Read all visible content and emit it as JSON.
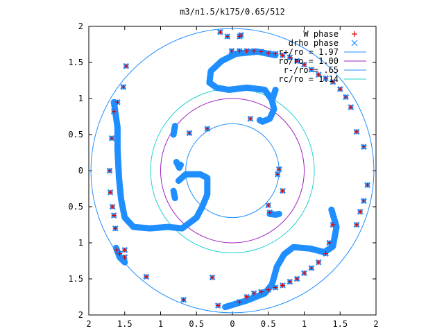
{
  "chart_data": {
    "type": "scatter",
    "title": "m3/n1.5/k175/0.65/512",
    "xlim": [
      2,
      -2
    ],
    "ylim": [
      -2,
      2
    ],
    "x_ticks": [
      {
        "value": 2,
        "label": "2"
      },
      {
        "value": 1.5,
        "label": "1.5"
      },
      {
        "value": 1,
        "label": "1"
      },
      {
        "value": 0.5,
        "label": "0.5"
      },
      {
        "value": 0,
        "label": "0"
      },
      {
        "value": -0.5,
        "label": "0.5"
      },
      {
        "value": -1,
        "label": "1"
      },
      {
        "value": -1.5,
        "label": "1.5"
      },
      {
        "value": -2,
        "label": "2"
      }
    ],
    "y_ticks": [
      {
        "value": 2,
        "label": "2"
      },
      {
        "value": 1.5,
        "label": "1.5"
      },
      {
        "value": 1,
        "label": "1"
      },
      {
        "value": 0.5,
        "label": "0.5"
      },
      {
        "value": 0,
        "label": "0"
      },
      {
        "value": -0.5,
        "label": "0.5"
      },
      {
        "value": -1,
        "label": "1"
      },
      {
        "value": -1.5,
        "label": "1.5"
      },
      {
        "value": -2,
        "label": "2"
      }
    ],
    "legend_position": "top-right",
    "grid": false,
    "circles": [
      {
        "name": "r+/ro = 1.97",
        "radius": 1.97,
        "color": "#1f8fff"
      },
      {
        "name": "ro/ro = 1.00",
        "radius": 1.0,
        "color": "#a020c0"
      },
      {
        "name": "r-/ro = .65",
        "radius": 0.65,
        "color": "#1f8fff"
      },
      {
        "name": "rc/ro = 1.14",
        "radius": 1.14,
        "color": "#20d0d0"
      }
    ],
    "series": [
      {
        "name": "W phase",
        "marker": "+",
        "color": "#dd0000",
        "points": [
          [
            0.17,
            1.92
          ],
          [
            0.07,
            1.86
          ],
          [
            -0.1,
            1.86
          ],
          [
            -0.12,
            1.88
          ],
          [
            0.01,
            1.66
          ],
          [
            -0.1,
            1.66
          ],
          [
            -0.2,
            1.66
          ],
          [
            -0.3,
            1.66
          ],
          [
            -0.4,
            1.65
          ],
          [
            -0.5,
            1.63
          ],
          [
            -0.6,
            1.62
          ],
          [
            -0.7,
            1.6
          ],
          [
            -0.8,
            1.57
          ],
          [
            -0.9,
            1.52
          ],
          [
            -1.0,
            1.47
          ],
          [
            -1.1,
            1.4
          ],
          [
            -1.2,
            1.33
          ],
          [
            -1.3,
            1.28
          ],
          [
            -1.4,
            1.23
          ],
          [
            -1.5,
            1.13
          ],
          [
            -1.58,
            1.02
          ],
          [
            -1.65,
            0.88
          ],
          [
            -1.73,
            0.54
          ],
          [
            -1.83,
            0.33
          ],
          [
            -1.88,
            -0.2
          ],
          [
            -1.83,
            -0.42
          ],
          [
            -1.78,
            -0.57
          ],
          [
            -1.73,
            -0.75
          ],
          [
            -0.7,
            -0.28
          ],
          [
            -0.52,
            -0.58
          ],
          [
            -1.4,
            -0.75
          ],
          [
            -1.35,
            -1.0
          ],
          [
            -1.3,
            -1.15
          ],
          [
            -1.2,
            -1.27
          ],
          [
            -1.1,
            -1.35
          ],
          [
            -1.0,
            -1.42
          ],
          [
            -0.9,
            -1.5
          ],
          [
            -0.8,
            -1.54
          ],
          [
            -0.7,
            -1.59
          ],
          [
            -0.6,
            -1.62
          ],
          [
            -0.5,
            -1.65
          ],
          [
            -0.4,
            -1.68
          ],
          [
            -0.3,
            -1.7
          ],
          [
            -0.2,
            -1.75
          ],
          [
            -0.1,
            -1.82
          ],
          [
            0.2,
            -1.87
          ],
          [
            -0.63,
            -0.05
          ],
          [
            -0.65,
            0.02
          ],
          [
            -0.5,
            -0.48
          ],
          [
            -0.25,
            0.72
          ],
          [
            0.35,
            0.58
          ],
          [
            1.6,
            0.95
          ],
          [
            1.65,
            0.82
          ],
          [
            1.68,
            0.45
          ],
          [
            1.71,
            0.0
          ],
          [
            1.7,
            -0.3
          ],
          [
            1.67,
            -0.5
          ],
          [
            1.65,
            -0.62
          ],
          [
            1.63,
            -0.8
          ],
          [
            1.61,
            -1.1
          ],
          [
            1.57,
            -1.15
          ],
          [
            1.5,
            -1.2
          ],
          [
            1.2,
            -1.47
          ],
          [
            1.48,
            1.45
          ],
          [
            1.52,
            1.16
          ],
          [
            0.68,
            -1.79
          ],
          [
            0.6,
            0.52
          ],
          [
            0.28,
            -1.48
          ],
          [
            1.5,
            -1.1
          ]
        ]
      },
      {
        "name": "drho phase",
        "marker": "x",
        "color": "#1f8fff",
        "points": [
          [
            0.17,
            1.92
          ],
          [
            0.07,
            1.86
          ],
          [
            -0.1,
            1.86
          ],
          [
            -0.12,
            1.88
          ],
          [
            0.01,
            1.66
          ],
          [
            -0.1,
            1.66
          ],
          [
            -0.2,
            1.66
          ],
          [
            -0.3,
            1.66
          ],
          [
            -0.4,
            1.65
          ],
          [
            -0.5,
            1.63
          ],
          [
            -0.6,
            1.62
          ],
          [
            -0.7,
            1.6
          ],
          [
            -0.8,
            1.57
          ],
          [
            -0.9,
            1.52
          ],
          [
            -1.0,
            1.47
          ],
          [
            -1.1,
            1.4
          ],
          [
            -1.2,
            1.33
          ],
          [
            -1.3,
            1.28
          ],
          [
            -1.4,
            1.23
          ],
          [
            -1.5,
            1.13
          ],
          [
            -1.58,
            1.02
          ],
          [
            -1.65,
            0.88
          ],
          [
            -1.73,
            0.54
          ],
          [
            -1.83,
            0.33
          ],
          [
            -1.88,
            -0.2
          ],
          [
            -1.83,
            -0.42
          ],
          [
            -1.78,
            -0.57
          ],
          [
            -1.73,
            -0.75
          ],
          [
            -0.7,
            -0.28
          ],
          [
            -0.52,
            -0.58
          ],
          [
            -1.4,
            -0.75
          ],
          [
            -1.35,
            -1.0
          ],
          [
            -1.3,
            -1.15
          ],
          [
            -1.2,
            -1.27
          ],
          [
            -1.1,
            -1.35
          ],
          [
            -1.0,
            -1.42
          ],
          [
            -0.9,
            -1.5
          ],
          [
            -0.8,
            -1.54
          ],
          [
            -0.7,
            -1.59
          ],
          [
            -0.6,
            -1.62
          ],
          [
            -0.5,
            -1.65
          ],
          [
            -0.4,
            -1.68
          ],
          [
            -0.3,
            -1.7
          ],
          [
            -0.2,
            -1.75
          ],
          [
            -0.1,
            -1.82
          ],
          [
            0.2,
            -1.87
          ],
          [
            -0.63,
            -0.05
          ],
          [
            -0.65,
            0.02
          ],
          [
            -0.5,
            -0.48
          ],
          [
            -0.25,
            0.72
          ],
          [
            0.35,
            0.58
          ],
          [
            1.6,
            0.95
          ],
          [
            1.65,
            0.82
          ],
          [
            1.68,
            0.45
          ],
          [
            1.71,
            0.0
          ],
          [
            1.7,
            -0.3
          ],
          [
            1.67,
            -0.5
          ],
          [
            1.65,
            -0.62
          ],
          [
            1.63,
            -0.8
          ],
          [
            1.61,
            -1.1
          ],
          [
            1.57,
            -1.15
          ],
          [
            1.5,
            -1.2
          ],
          [
            1.2,
            -1.47
          ],
          [
            1.48,
            1.45
          ],
          [
            1.52,
            1.16
          ],
          [
            0.68,
            -1.79
          ],
          [
            0.6,
            0.52
          ],
          [
            0.28,
            -1.48
          ],
          [
            1.5,
            -1.1
          ]
        ],
        "curves": [
          [
            [
              -0.6,
              1.6
            ],
            [
              -0.35,
              1.65
            ],
            [
              -0.05,
              1.62
            ],
            [
              0.15,
              1.52
            ],
            [
              0.3,
              1.38
            ],
            [
              0.32,
              1.22
            ],
            [
              0.22,
              1.15
            ],
            [
              0.05,
              1.12
            ],
            [
              -0.2,
              1.15
            ],
            [
              -0.45,
              1.12
            ],
            [
              -0.55,
              0.98
            ],
            [
              -0.58,
              0.85
            ],
            [
              -0.52,
              0.72
            ],
            [
              -0.42,
              0.68
            ],
            [
              -0.38,
              0.7
            ]
          ],
          [
            [
              -1.38,
              -0.54
            ],
            [
              -1.45,
              -0.78
            ],
            [
              -1.4,
              -1.05
            ],
            [
              -1.28,
              -1.13
            ],
            [
              -1.08,
              -1.08
            ],
            [
              -0.85,
              -1.06
            ],
            [
              -0.72,
              -1.16
            ],
            [
              -0.62,
              -1.33
            ],
            [
              -0.55,
              -1.58
            ],
            [
              -0.45,
              -1.7
            ],
            [
              -0.2,
              -1.8
            ],
            [
              0.0,
              -1.86
            ],
            [
              0.1,
              -1.89
            ]
          ],
          [
            [
              1.65,
              0.95
            ],
            [
              1.6,
              0.6
            ],
            [
              1.6,
              0.3
            ],
            [
              1.58,
              -0.1
            ],
            [
              1.55,
              -0.4
            ],
            [
              1.5,
              -0.65
            ],
            [
              1.38,
              -0.78
            ],
            [
              1.15,
              -0.8
            ],
            [
              0.9,
              -0.78
            ],
            [
              0.7,
              -0.8
            ],
            [
              0.5,
              -0.65
            ],
            [
              0.42,
              -0.5
            ],
            [
              0.35,
              -0.33
            ],
            [
              0.35,
              -0.1
            ],
            [
              0.45,
              -0.05
            ],
            [
              0.65,
              -0.05
            ],
            [
              0.75,
              -0.14
            ]
          ],
          [
            [
              0.78,
              0.12
            ],
            [
              0.74,
              0.04
            ],
            [
              0.72,
              0.08
            ]
          ],
          [
            [
              0.82,
              -0.28
            ],
            [
              0.8,
              -0.38
            ]
          ],
          [
            [
              -0.52,
              -0.6
            ],
            [
              -0.6,
              -0.61
            ],
            [
              -0.65,
              -0.6
            ]
          ],
          [
            [
              0.82,
              0.5
            ],
            [
              0.8,
              0.62
            ]
          ],
          [
            [
              1.62,
              -1.07
            ],
            [
              1.6,
              -1.12
            ],
            [
              1.57,
              -1.2
            ],
            [
              1.5,
              -1.27
            ]
          ],
          [
            [
              -0.56,
              1.0
            ],
            [
              -0.6,
              1.12
            ]
          ]
        ]
      }
    ]
  }
}
